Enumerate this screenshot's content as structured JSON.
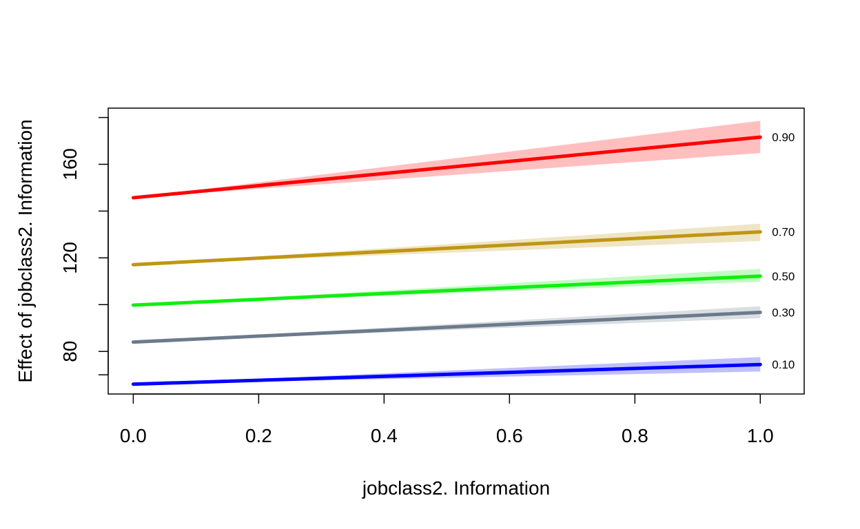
{
  "chart_data": {
    "type": "line",
    "title": "",
    "xlabel": "jobclass2. Information",
    "ylabel": "Effect of  jobclass2. Information",
    "xlim": [
      -0.04,
      1.07
    ],
    "ylim": [
      61.8,
      184
    ],
    "x_ticks": [
      {
        "value": 0.0,
        "label": "0.0"
      },
      {
        "value": 0.2,
        "label": "0.2"
      },
      {
        "value": 0.4,
        "label": "0.4"
      },
      {
        "value": 0.6,
        "label": "0.6"
      },
      {
        "value": 0.8,
        "label": "0.8"
      },
      {
        "value": 1.0,
        "label": "1.0"
      }
    ],
    "y_ticks": [
      {
        "value": 70,
        "label": ""
      },
      {
        "value": 80,
        "label": "80"
      },
      {
        "value": 100,
        "label": ""
      },
      {
        "value": 120,
        "label": "120"
      },
      {
        "value": 140,
        "label": ""
      },
      {
        "value": 160,
        "label": "160"
      },
      {
        "value": 180,
        "label": ""
      }
    ],
    "grid": false,
    "legend": "none",
    "series": [
      {
        "label": "0.10",
        "color": "#0000ff",
        "band_color": "#0000ff",
        "x": [
          0,
          1
        ],
        "y": [
          66.0,
          74.4
        ],
        "band_end_lower": 71.4,
        "band_end_upper": 77.6
      },
      {
        "label": "0.30",
        "color": "#6b7b8c",
        "band_color": "#6b7b8c",
        "x": [
          0,
          1
        ],
        "y": [
          84.0,
          96.7
        ],
        "band_end_lower": 94.2,
        "band_end_upper": 99.3
      },
      {
        "label": "0.50",
        "color": "#11ee11",
        "band_color": "#11ee11",
        "x": [
          0,
          1
        ],
        "y": [
          99.8,
          112.2
        ],
        "band_end_lower": 109.8,
        "band_end_upper": 115.3
      },
      {
        "label": "0.70",
        "color": "#bf9614",
        "band_color": "#bf9614",
        "x": [
          0,
          1
        ],
        "y": [
          117.1,
          131.1
        ],
        "band_end_lower": 127.2,
        "band_end_upper": 134.6
      },
      {
        "label": "0.90",
        "color": "#ff0000",
        "band_color": "#ff0000",
        "x": [
          0,
          1
        ],
        "y": [
          145.7,
          171.6
        ],
        "band_end_lower": 164.8,
        "band_end_upper": 178.6
      }
    ]
  }
}
